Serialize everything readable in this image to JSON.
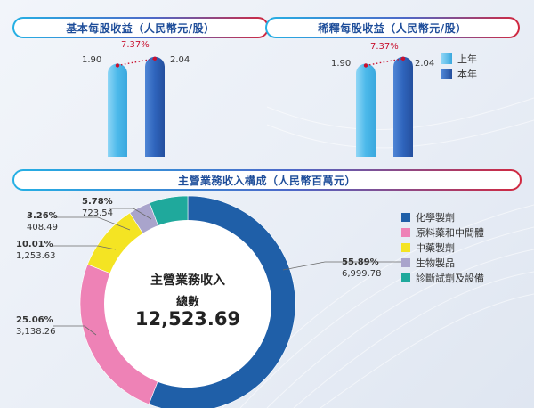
{
  "eps_basic": {
    "title": "基本每股收益（人民幣元/股）",
    "prev_value": "1.90",
    "curr_value": "2.04",
    "growth": "7.37%"
  },
  "eps_diluted": {
    "title": "稀釋每股收益（人民幣元/股）",
    "prev_value": "1.90",
    "curr_value": "2.04",
    "growth": "7.37%"
  },
  "bar_legend": {
    "prev": "上年",
    "curr": "本年"
  },
  "revenue": {
    "title": "主營業務收入構成（人民幣百萬元）",
    "center_line1": "主營業務收入",
    "center_line2": "總數",
    "center_total": "12,523.69"
  },
  "colors": {
    "chem": "#1f5fa8",
    "raw": "#ee82b6",
    "tcm": "#f4e423",
    "bio": "#a9a4cc",
    "diag": "#1fa99c",
    "bar_light": "#5cc3ef",
    "bar_dark": "#2e63ba"
  },
  "chart_data": [
    {
      "type": "bar",
      "title": "基本每股收益（人民幣元/股）",
      "categories": [
        "上年",
        "本年"
      ],
      "values": [
        1.9,
        2.04
      ],
      "annotation": "7.37%"
    },
    {
      "type": "bar",
      "title": "稀釋每股收益（人民幣元/股）",
      "categories": [
        "上年",
        "本年"
      ],
      "values": [
        1.9,
        2.04
      ],
      "annotation": "7.37%"
    },
    {
      "type": "pie",
      "title": "主營業務收入構成（人民幣百萬元）",
      "slices": [
        {
          "name": "化學製劑",
          "percent": "55.89%",
          "value": "6,999.78",
          "amount": 6999.78,
          "color": "#1f5fa8"
        },
        {
          "name": "原料藥和中間體",
          "percent": "25.06%",
          "value": "3,138.26",
          "amount": 3138.26,
          "color": "#ee82b6"
        },
        {
          "name": "中藥製劑",
          "percent": "10.01%",
          "value": "1,253.63",
          "amount": 1253.63,
          "color": "#f4e423"
        },
        {
          "name": "生物製品",
          "percent": "3.26%",
          "value": "408.49",
          "amount": 408.49,
          "color": "#a9a4cc"
        },
        {
          "name": "診斷試劑及設備",
          "percent": "5.78%",
          "value": "723.54",
          "amount": 723.54,
          "color": "#1fa99c"
        }
      ]
    }
  ]
}
